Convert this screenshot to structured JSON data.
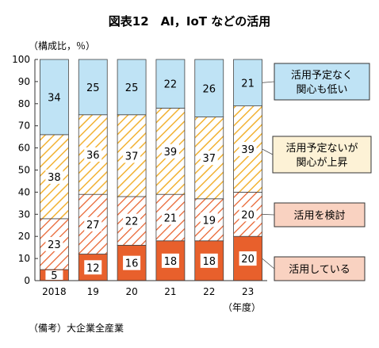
{
  "chart_data": {
    "type": "bar",
    "stacked": true,
    "title": "図表12　AI，IoT などの活用",
    "ylabel": "（構成比，％）",
    "ylim": [
      0,
      100
    ],
    "yticks": [
      0,
      10,
      20,
      30,
      40,
      50,
      60,
      70,
      80,
      90,
      100
    ],
    "categories": [
      "2018",
      "19",
      "20",
      "21",
      "22",
      "23"
    ],
    "xunit": "（年度）",
    "series": [
      {
        "name": "活用している",
        "values": [
          5,
          12,
          16,
          18,
          18,
          20
        ],
        "color": "#e8602c",
        "pattern": "solid"
      },
      {
        "name": "活用を検討",
        "values": [
          23,
          27,
          22,
          21,
          19,
          20
        ],
        "color": "#e8602c",
        "pattern": "red-hatch"
      },
      {
        "name": "活用予定ないが関心が上昇",
        "values": [
          38,
          36,
          37,
          39,
          37,
          39
        ],
        "color": "#f2b233",
        "pattern": "yellow-hatch"
      },
      {
        "name": "活用予定なく関心も低い",
        "values": [
          34,
          25,
          25,
          22,
          26,
          21
        ],
        "color": "#bfe3f5",
        "pattern": "solid"
      }
    ],
    "legend": [
      {
        "lines": [
          "活用予定なく",
          "関心も低い"
        ],
        "fill": "#bfe3f5"
      },
      {
        "lines": [
          "活用予定ないが",
          "関心が上昇"
        ],
        "fill": "#fdf2d6"
      },
      {
        "lines": [
          "活用を検討"
        ],
        "fill": "#f9d2c1"
      },
      {
        "lines": [
          "活用している"
        ],
        "fill": "#f9d2c1"
      }
    ],
    "legend_position": "right",
    "grid": false
  },
  "note": "（備考）大企業全産業"
}
